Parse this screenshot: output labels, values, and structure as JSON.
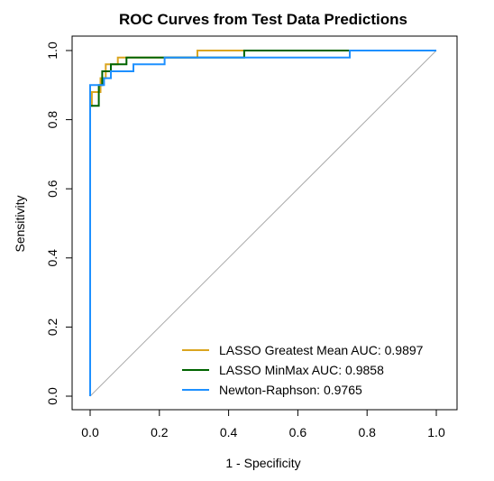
{
  "chart_data": {
    "type": "line",
    "title": "ROC Curves from Test Data Predictions",
    "xlabel": "1 - Specificity",
    "ylabel": "Sensitivity",
    "xlim": [
      0,
      1
    ],
    "ylim": [
      0,
      1
    ],
    "x_ticks": [
      "0.0",
      "0.2",
      "0.4",
      "0.6",
      "0.8",
      "1.0"
    ],
    "y_ticks": [
      "0.0",
      "0.2",
      "0.4",
      "0.6",
      "0.8",
      "1.0"
    ],
    "grid": false,
    "legend_position": "bottom-right",
    "diagonal_reference": {
      "color": "#aaaaaa"
    },
    "series": [
      {
        "name": "LASSO Greatest Mean AUC: 0.9897",
        "color": "#daa520",
        "points": [
          [
            0,
            0
          ],
          [
            0,
            0.84
          ],
          [
            0.005,
            0.84
          ],
          [
            0.005,
            0.88
          ],
          [
            0.03,
            0.88
          ],
          [
            0.03,
            0.92
          ],
          [
            0.045,
            0.92
          ],
          [
            0.045,
            0.96
          ],
          [
            0.08,
            0.96
          ],
          [
            0.08,
            0.98
          ],
          [
            0.31,
            0.98
          ],
          [
            0.31,
            1.0
          ],
          [
            1.0,
            1.0
          ]
        ]
      },
      {
        "name": "LASSO MinMax AUC: 0.9858",
        "color": "#006400",
        "points": [
          [
            0,
            0
          ],
          [
            0,
            0.84
          ],
          [
            0.025,
            0.84
          ],
          [
            0.025,
            0.9
          ],
          [
            0.035,
            0.9
          ],
          [
            0.035,
            0.94
          ],
          [
            0.06,
            0.94
          ],
          [
            0.06,
            0.96
          ],
          [
            0.105,
            0.96
          ],
          [
            0.105,
            0.98
          ],
          [
            0.445,
            0.98
          ],
          [
            0.445,
            1.0
          ],
          [
            0.75,
            1.0
          ],
          [
            1.0,
            1.0
          ]
        ]
      },
      {
        "name": "Newton-Raphson: 0.9765",
        "color": "#1e90ff",
        "points": [
          [
            0,
            0
          ],
          [
            0,
            0.9
          ],
          [
            0.04,
            0.9
          ],
          [
            0.04,
            0.92
          ],
          [
            0.06,
            0.92
          ],
          [
            0.06,
            0.94
          ],
          [
            0.125,
            0.94
          ],
          [
            0.125,
            0.96
          ],
          [
            0.215,
            0.96
          ],
          [
            0.215,
            0.98
          ],
          [
            0.75,
            0.98
          ],
          [
            0.75,
            1.0
          ],
          [
            1.0,
            1.0
          ]
        ]
      }
    ]
  }
}
